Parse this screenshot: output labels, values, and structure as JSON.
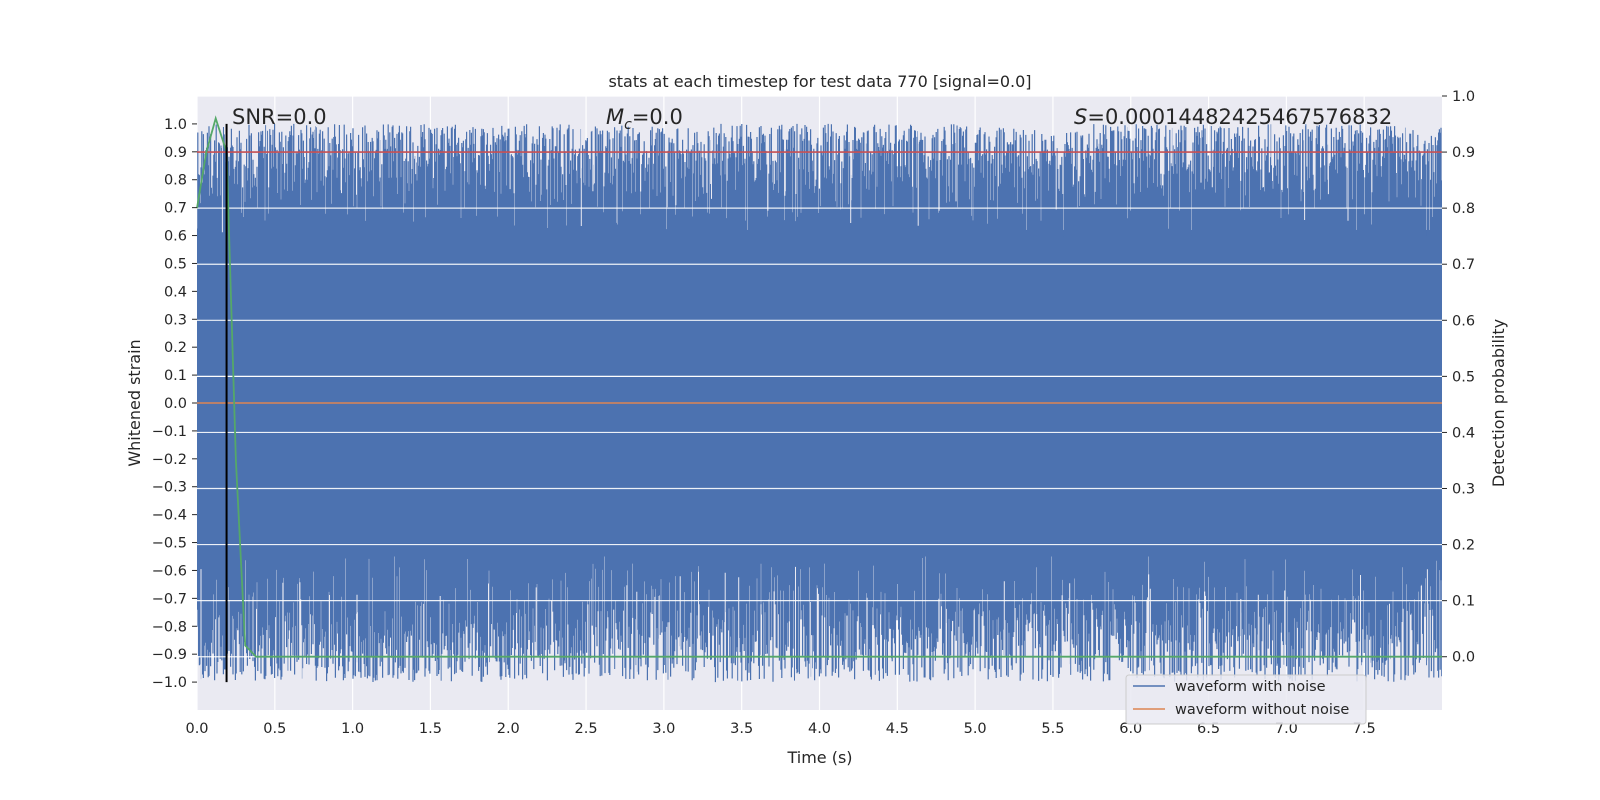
{
  "chart_data": {
    "type": "line",
    "title": "stats at each timestep for test data 770 [signal=0.0]",
    "xlabel": "Time (s)",
    "ylabel": "Whitened strain",
    "y2label": "Detection probability",
    "xlim": [
      0.0,
      8.0
    ],
    "ylim": [
      -1.1,
      1.1
    ],
    "y2lim": [
      -0.095,
      1.0
    ],
    "x_ticks": [
      0.0,
      0.5,
      1.0,
      1.5,
      2.0,
      2.5,
      3.0,
      3.5,
      4.0,
      4.5,
      5.0,
      5.5,
      6.0,
      6.5,
      7.0,
      7.5
    ],
    "x_tick_labels": [
      "0.0",
      "0.5",
      "1.0",
      "1.5",
      "2.0",
      "2.5",
      "3.0",
      "3.5",
      "4.0",
      "4.5",
      "5.0",
      "5.5",
      "6.0",
      "6.5",
      "7.0",
      "7.5"
    ],
    "y_ticks": [
      1.0,
      0.9,
      0.8,
      0.7,
      0.6,
      0.5,
      0.4,
      0.3,
      0.2,
      0.1,
      0.0,
      -0.1,
      -0.2,
      -0.3,
      -0.4,
      -0.5,
      -0.6,
      -0.7,
      -0.8,
      -0.9,
      -1.0
    ],
    "y_tick_labels": [
      "1.0",
      "0.9",
      "0.8",
      "0.7",
      "0.6",
      "0.5",
      "0.4",
      "0.3",
      "0.2",
      "0.1",
      "0.0",
      "−0.1",
      "−0.2",
      "−0.3",
      "−0.4",
      "−0.5",
      "−0.6",
      "−0.7",
      "−0.8",
      "−0.9",
      "−1.0"
    ],
    "y2_ticks": [
      1.0,
      0.9,
      0.8,
      0.7,
      0.6,
      0.5,
      0.4,
      0.3,
      0.2,
      0.1,
      0.0
    ],
    "y2_tick_labels": [
      "1.0",
      "0.9",
      "0.8",
      "0.7",
      "0.6",
      "0.5",
      "0.4",
      "0.3",
      "0.2",
      "0.1",
      "0.0"
    ],
    "grid": true,
    "legend_position": "lower-right",
    "series": [
      {
        "name": "waveform with noise",
        "color": "#4c72b0",
        "axis": "left",
        "style": "dense noise between -1.0 and 1.0 over the full time range"
      },
      {
        "name": "waveform without noise",
        "color": "#dd8452",
        "axis": "left",
        "x": [
          0.0,
          8.0
        ],
        "y": [
          0.0,
          0.0
        ]
      },
      {
        "color": "#55a868",
        "axis": "right",
        "x": [
          0.0,
          0.06,
          0.12,
          0.19,
          0.25,
          0.31,
          0.38,
          8.0
        ],
        "y": [
          0.8,
          0.9,
          0.96,
          0.9,
          0.35,
          0.02,
          0.0,
          0.0
        ]
      },
      {
        "color": "#c44e52",
        "axis": "right",
        "x": [
          0.0,
          8.0
        ],
        "y": [
          0.9,
          0.9
        ]
      }
    ],
    "vertical_line": {
      "x": 0.19,
      "color": "#000000"
    },
    "annotations": {
      "snr": "SNR=0.0",
      "mc_symbol": "M",
      "mc_subscript": "c",
      "mc_value": "=0.0",
      "s_symbol": "S",
      "s_value": "=0.00014482425467576832"
    }
  }
}
